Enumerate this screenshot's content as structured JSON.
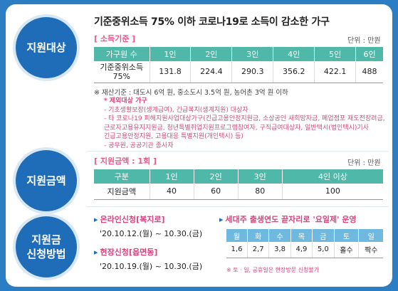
{
  "section1": {
    "circle_label": "지원대상",
    "headline": "기준중위소득 75% 이하 코로나19로 소득이 감소한 가구",
    "tag": "[ 소득기준 ]",
    "unit": "단위 : 만원",
    "table_headers": [
      "가구원 수",
      "1인",
      "2인",
      "3인",
      "4인",
      "5인",
      "6인"
    ],
    "row_label": "기준중위소득 75%",
    "row_values": [
      "131.8",
      "224.4",
      "290.3",
      "356.2",
      "422.1",
      "488"
    ],
    "asset_note": "※ 재산기준 : 대도시 6억 원, 중소도시 3.5억 원, 농어촌 3억 원 이하",
    "exclusions": [
      "* 제외대상 가구",
      "- 기초생활보장(생계급여), 긴급복지(생계지원) 대상자",
      "- 타 코로나19 피해지원사업대상가구(긴급고용안정지원금, 소상공인 새희망자금, 폐업점포 재도전장려금,",
      "  근로자고용유지지원금, 청년특별취업지원프로그램참여자, 구직급여대상자, 일반택시(법인택시)기사",
      "  긴급고용안정지원, 고용대응 특별지원(개인택시) 등)",
      "- 공무원, 공공기관 종사자"
    ]
  },
  "section2": {
    "circle_label": "지원금액",
    "tag": "[ 지원금액 : 1회 ]",
    "unit": "단위 : 만원",
    "table_headers": [
      "구분",
      "1인",
      "2인",
      "3인",
      "4인 이상"
    ],
    "row_label": "지원금액",
    "row_values": [
      "40",
      "60",
      "80",
      "100"
    ]
  },
  "section3": {
    "circle_label_line1": "지원금",
    "circle_label_line2": "신청방법",
    "online_title": "온라인신청[복지로]",
    "online_date": "'20.10.12.(월) ~ 10.30.(금)",
    "offline_title": "현장신청[읍면동]",
    "offline_date": "'20.10.19.(월) ~ 10.30.(금)",
    "fivedays_title": "세대주 출생연도 끝자리로 '요일제' 운영",
    "fivedays_headers": [
      "월",
      "화",
      "수",
      "목",
      "금",
      "토",
      "일"
    ],
    "fivedays_values": [
      "1,6",
      "2,7",
      "3,8",
      "4,9",
      "5,0",
      "홀수",
      "짝수"
    ],
    "warning": "※ 토 · 일, 공휴일은 현장방문 신청불가"
  },
  "colors": {
    "background": "#2b7ec4",
    "circle": "#1f6db8",
    "table_header_teal": "#4fb8a8",
    "table_header_blue": "#6fb9e0",
    "accent_pink": "#d6457d"
  }
}
